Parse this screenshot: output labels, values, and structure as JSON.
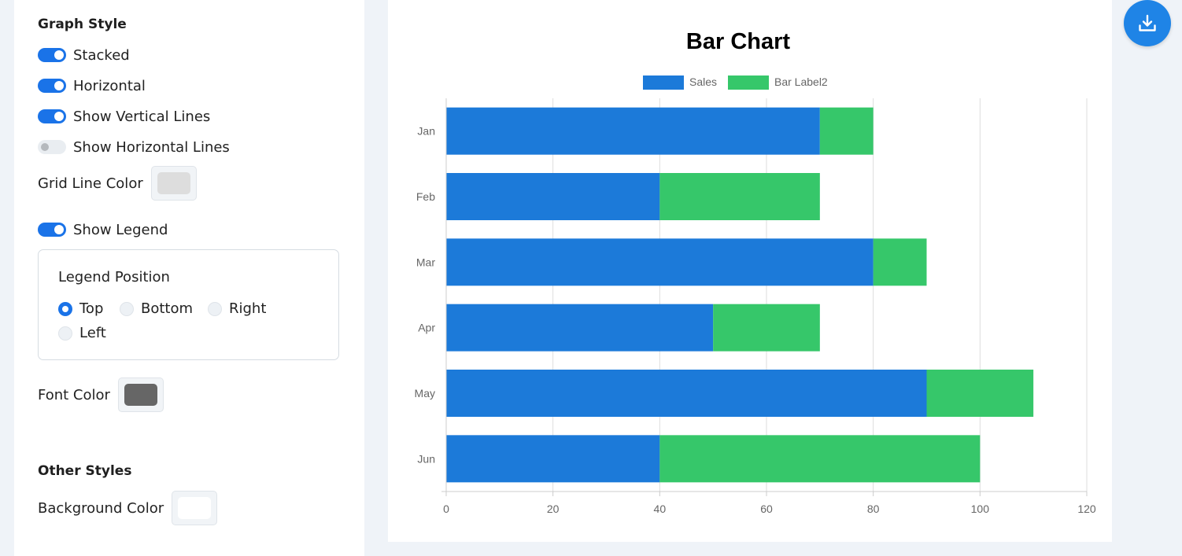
{
  "settings": {
    "graph_style_title": "Graph Style",
    "toggles": [
      {
        "label": "Stacked",
        "on": true
      },
      {
        "label": "Horizontal",
        "on": true
      },
      {
        "label": "Show Vertical Lines",
        "on": true
      },
      {
        "label": "Show Horizontal Lines",
        "on": false
      }
    ],
    "grid_line_color_label": "Grid Line Color",
    "grid_line_color": "#dddddd",
    "show_legend_label": "Show Legend",
    "show_legend_on": true,
    "legend_position": {
      "title": "Legend Position",
      "options": [
        "Top",
        "Bottom",
        "Right",
        "Left"
      ],
      "selected": "Top"
    },
    "font_color_label": "Font Color",
    "font_color": "#666666",
    "other_styles_title": "Other Styles",
    "background_color_label": "Background Color",
    "background_color": "#ffffff"
  },
  "download_icon": "download-icon",
  "chart_data": {
    "type": "bar",
    "orientation": "horizontal",
    "stacked": true,
    "title": "Bar Chart",
    "categories": [
      "Jan",
      "Feb",
      "Mar",
      "Apr",
      "May",
      "Jun"
    ],
    "series": [
      {
        "name": "Sales",
        "values": [
          70,
          40,
          80,
          50,
          90,
          40
        ],
        "color": "#1c7ad9"
      },
      {
        "name": "Bar Label2",
        "values": [
          10,
          30,
          10,
          20,
          20,
          60
        ],
        "color": "#36c76a"
      }
    ],
    "xlim": [
      0,
      120
    ],
    "x_ticks": [
      "0",
      "20",
      "40",
      "60",
      "80",
      "100",
      "120"
    ],
    "legend_position": "top",
    "vertical_grid": true,
    "horizontal_grid": false
  }
}
